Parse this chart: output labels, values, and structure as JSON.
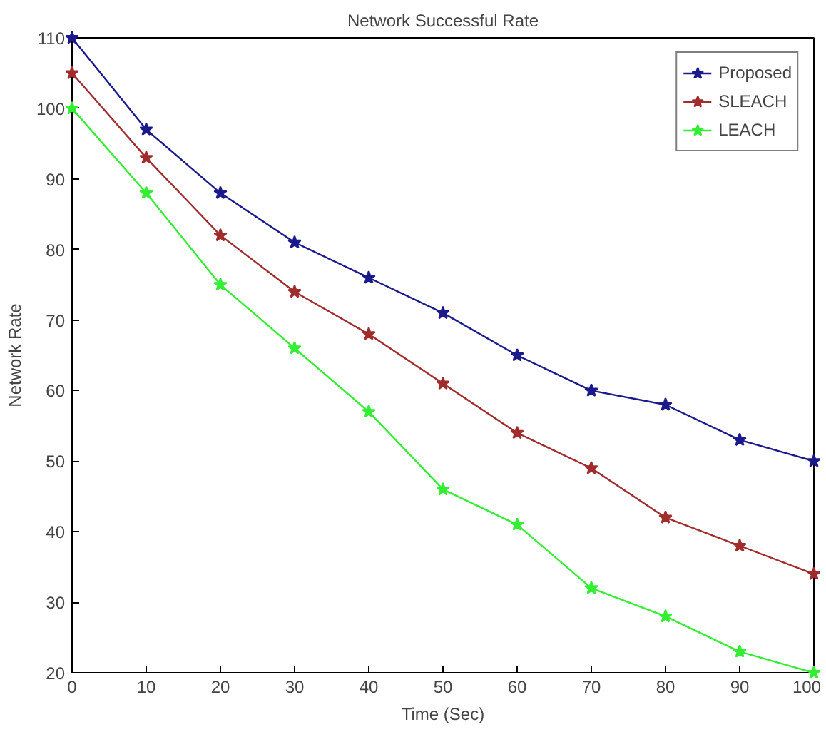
{
  "chart_data": {
    "type": "line",
    "title": "Network Successful Rate",
    "xlabel": "Time (Sec)",
    "ylabel": "Network Rate",
    "x": [
      0,
      10,
      20,
      30,
      40,
      50,
      60,
      70,
      80,
      90,
      100
    ],
    "series": [
      {
        "name": "Proposed",
        "color": "#1a1a8c",
        "values": [
          110,
          97,
          88,
          81,
          76,
          71,
          65,
          60,
          58,
          53,
          50
        ]
      },
      {
        "name": "SLEACH",
        "color": "#a02c2c",
        "values": [
          105,
          93,
          82,
          74,
          68,
          61,
          54,
          49,
          42,
          38,
          34
        ]
      },
      {
        "name": "LEACH",
        "color": "#33ee33",
        "values": [
          100,
          88,
          75,
          66,
          57,
          46,
          41,
          32,
          28,
          23,
          20
        ]
      }
    ],
    "xlim": [
      0,
      100
    ],
    "ylim": [
      20,
      110
    ],
    "xticks": [
      0,
      10,
      20,
      30,
      40,
      50,
      60,
      70,
      80,
      90,
      100
    ],
    "yticks": [
      20,
      30,
      40,
      50,
      60,
      70,
      80,
      90,
      100,
      110
    ],
    "grid": false,
    "legend": "top right",
    "marker": "star",
    "line_style": "solid"
  }
}
